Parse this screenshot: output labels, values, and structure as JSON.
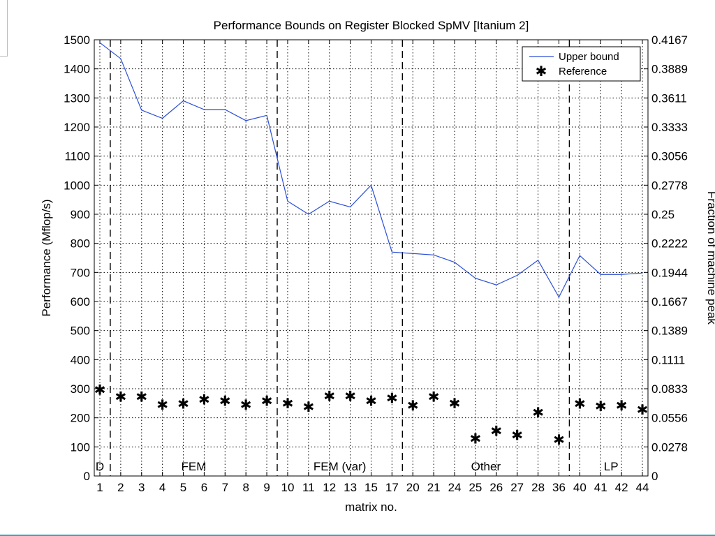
{
  "chart_data": {
    "type": "line",
    "title": "Performance Bounds on Register Blocked SpMV [Itanium 2]",
    "xlabel": "matrix no.",
    "ylabel": "Performance (Mflop/s)",
    "ylabel_right": "Fraction of machine peak",
    "categories": [
      "1",
      "2",
      "3",
      "4",
      "5",
      "6",
      "7",
      "8",
      "9",
      "10",
      "11",
      "12",
      "13",
      "15",
      "17",
      "20",
      "21",
      "24",
      "25",
      "26",
      "27",
      "28",
      "36",
      "40",
      "41",
      "42",
      "44"
    ],
    "ylim": [
      0,
      1500
    ],
    "yticks": [
      "0",
      "100",
      "200",
      "300",
      "400",
      "500",
      "600",
      "700",
      "800",
      "900",
      "1000",
      "1100",
      "1200",
      "1300",
      "1400",
      "1500"
    ],
    "right_yticks": [
      "0",
      "0.0278",
      "0.0556",
      "0.0833",
      "0.1111",
      "0.1389",
      "0.1667",
      "0.1944",
      "0.2222",
      "0.25",
      "0.2778",
      "0.3056",
      "0.3333",
      "0.3611",
      "0.3889",
      "0.4167"
    ],
    "grid": true,
    "legend_position": "top-right",
    "series": [
      {
        "name": "Upper bound",
        "style": "line",
        "color": "#2b4fd6",
        "values": [
          1490,
          1435,
          1258,
          1230,
          1290,
          1260,
          1260,
          1222,
          1240,
          945,
          900,
          945,
          925,
          1000,
          770,
          765,
          760,
          735,
          680,
          657,
          690,
          742,
          615,
          758,
          693,
          693,
          698
        ]
      },
      {
        "name": "Reference",
        "style": "marker-star",
        "color": "#000000",
        "values": [
          297,
          272,
          272,
          245,
          248,
          263,
          258,
          245,
          258,
          250,
          238,
          275,
          275,
          258,
          268,
          242,
          272,
          250,
          128,
          155,
          140,
          218,
          125,
          248,
          240,
          242,
          228
        ]
      }
    ],
    "regions": [
      {
        "label": "D",
        "start_index": 0,
        "end_index": 0
      },
      {
        "label": "FEM",
        "start_index": 1,
        "end_index": 8
      },
      {
        "label": "FEM (var)",
        "start_index": 9,
        "end_index": 14
      },
      {
        "label": "Other",
        "start_index": 15,
        "end_index": 22
      },
      {
        "label": "LP",
        "start_index": 23,
        "end_index": 26
      }
    ],
    "region_dividers_after_index": [
      0,
      8,
      14,
      22
    ]
  }
}
